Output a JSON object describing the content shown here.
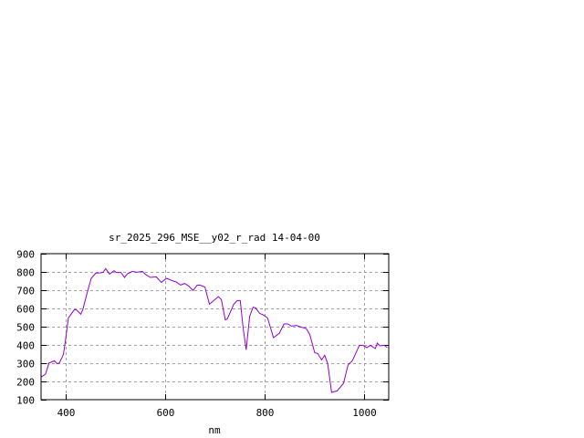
{
  "chart_data": {
    "type": "line",
    "title": "sr_2025_296_MSE__y02_r_rad 14-04-00",
    "xlabel": "nm",
    "ylabel": "",
    "xlim": [
      350,
      1050
    ],
    "ylim": [
      100,
      900
    ],
    "xticks": [
      400,
      600,
      800,
      1000
    ],
    "yticks": [
      100,
      200,
      300,
      400,
      500,
      600,
      700,
      800,
      900
    ],
    "grid": true,
    "legend": "none",
    "series": [
      {
        "color": "#9400d3",
        "x": [
          350,
          359,
          366,
          377,
          382,
          387,
          395,
          399,
          405,
          417,
          421,
          430,
          434,
          444,
          451,
          460,
          469,
          475,
          480,
          488,
          497,
          501,
          511,
          518,
          524,
          534,
          543,
          554,
          560,
          570,
          582,
          592,
          603,
          613,
          622,
          631,
          639,
          647,
          656,
          664,
          670,
          680,
          689,
          707,
          713,
          721,
          725,
          738,
          745,
          751,
          757,
          763,
          770,
          777,
          782,
          790,
          797,
          806,
          818,
          830,
          839,
          847,
          854,
          864,
          873,
          884,
          891,
          901,
          907,
          915,
          921,
          927,
          935,
          946,
          959,
          968,
          977,
          991,
          998,
          1006,
          1013,
          1023,
          1027,
          1032,
          1041,
          1047
        ],
        "y": [
          224,
          240,
          301,
          313,
          298,
          301,
          348,
          423,
          548,
          593,
          593,
          568,
          593,
          698,
          765,
          793,
          795,
          798,
          818,
          788,
          807,
          797,
          797,
          770,
          790,
          803,
          798,
          803,
          787,
          770,
          773,
          743,
          765,
          753,
          745,
          728,
          737,
          723,
          698,
          727,
          728,
          717,
          623,
          665,
          648,
          537,
          543,
          623,
          643,
          643,
          490,
          373,
          557,
          607,
          603,
          573,
          565,
          548,
          440,
          465,
          515,
          515,
          503,
          507,
          498,
          490,
          457,
          357,
          353,
          318,
          343,
          298,
          140,
          148,
          190,
          290,
          315,
          398,
          398,
          385,
          398,
          380,
          410,
          395,
          398,
          385
        ]
      }
    ]
  }
}
